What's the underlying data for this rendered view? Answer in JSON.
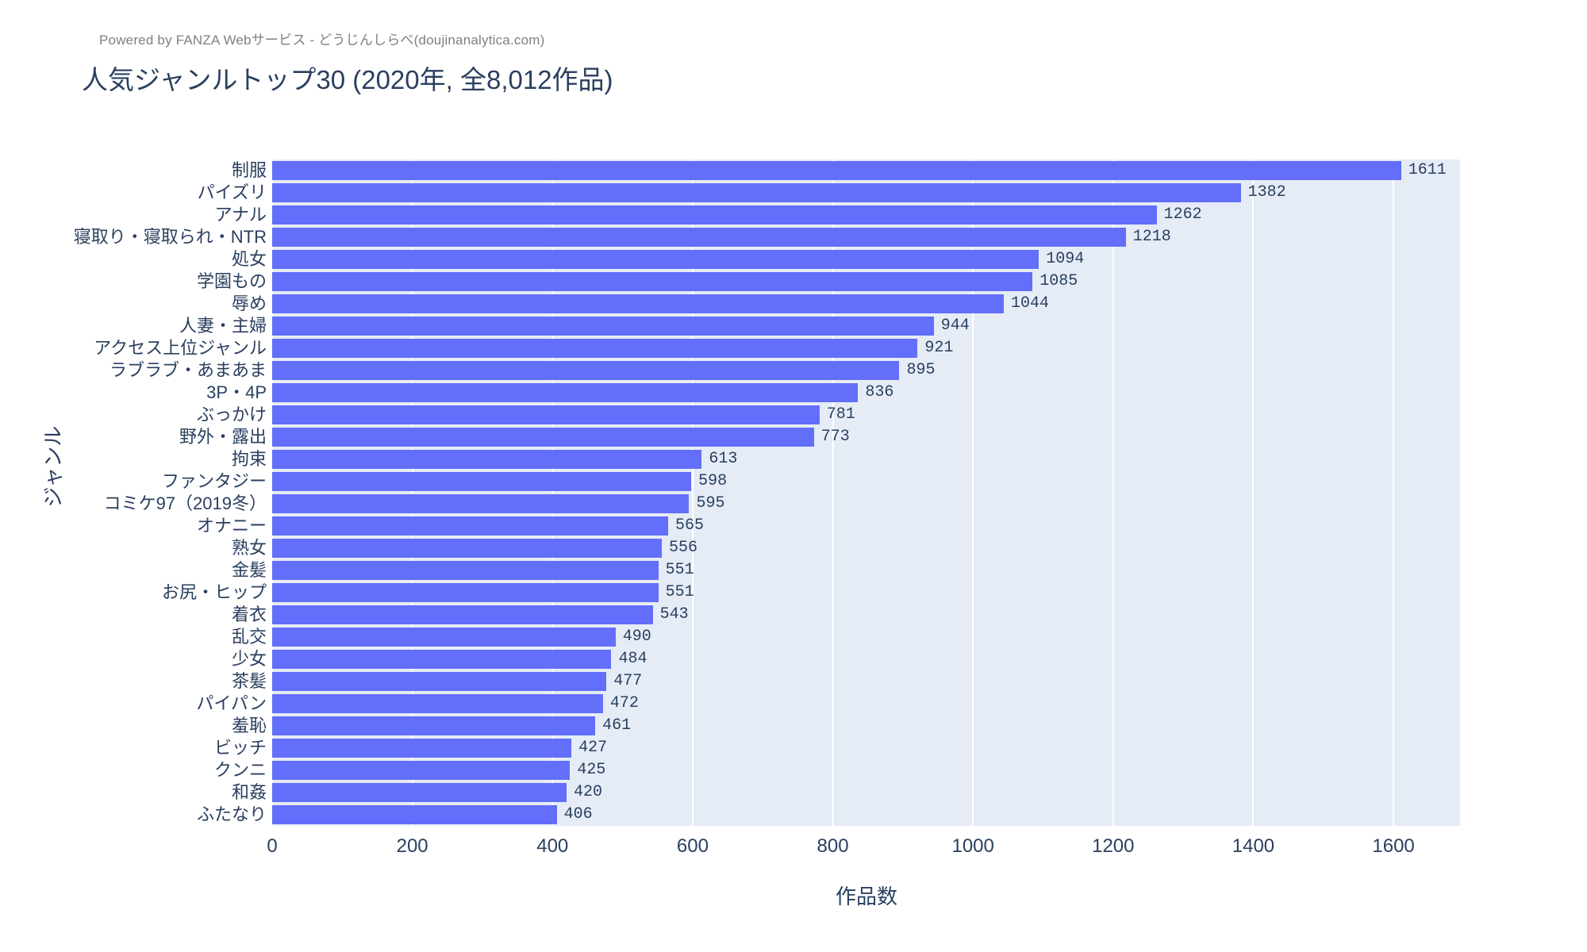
{
  "header": {
    "powered_by": "Powered by FANZA Webサービス - どうじんしらべ(doujinanalytica.com)"
  },
  "chart_data": {
    "type": "bar",
    "orientation": "horizontal",
    "title": "人気ジャンルトップ30 (2020年, 全8,012作品)",
    "xlabel": "作品数",
    "ylabel": "ジャンル",
    "categories": [
      "制服",
      "パイズリ",
      "アナル",
      "寝取り・寝取られ・NTR",
      "処女",
      "学園もの",
      "辱め",
      "人妻・主婦",
      "アクセス上位ジャンル",
      "ラブラブ・あまあま",
      "3P・4P",
      "ぶっかけ",
      "野外・露出",
      "拘束",
      "ファンタジー",
      "コミケ97（2019冬）",
      "オナニー",
      "熟女",
      "金髪",
      "お尻・ヒップ",
      "着衣",
      "乱交",
      "少女",
      "茶髪",
      "パイパン",
      "羞恥",
      "ビッチ",
      "クンニ",
      "和姦",
      "ふたなり"
    ],
    "values": [
      1611,
      1382,
      1262,
      1218,
      1094,
      1085,
      1044,
      944,
      921,
      895,
      836,
      781,
      773,
      613,
      598,
      595,
      565,
      556,
      551,
      551,
      543,
      490,
      484,
      477,
      472,
      461,
      427,
      425,
      420,
      406
    ],
    "xlim": [
      0,
      1695
    ],
    "xticks": [
      0,
      200,
      400,
      600,
      800,
      1000,
      1200,
      1400,
      1600
    ],
    "grid": "vertical-white-lines",
    "legend": "none",
    "value_labels": "outside-end",
    "colors": {
      "bar": "#636efa",
      "plot_background": "#e5ecf6",
      "gridline": "#ffffff",
      "text": "#2a3f5f",
      "powered_by_text": "#7f7f7f"
    }
  }
}
